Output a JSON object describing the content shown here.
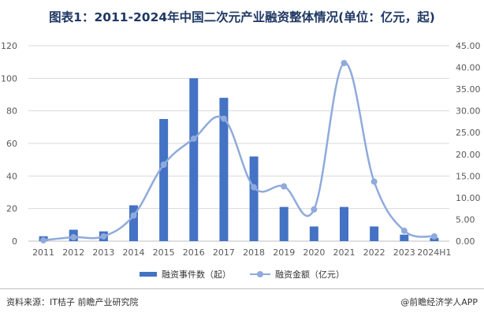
{
  "page": {
    "title": "图表1：2011-2024年中国二次元产业融资整体情况(单位：亿元，起)",
    "source": "资料来源：IT桔子 前瞻产业研究院",
    "brand": "@前瞻经济学人APP"
  },
  "legend": {
    "bar_label": "融资事件数（起）",
    "line_label": "融资金额（亿元）"
  },
  "chart_data": {
    "type": "bar",
    "title": "图表1：2011-2024年中国二次元产业融资整体情况(单位：亿元，起)",
    "categories": [
      "2011",
      "2012",
      "2013",
      "2014",
      "2015",
      "2016",
      "2017",
      "2018",
      "2019",
      "2020",
      "2021",
      "2022",
      "2023",
      "2024H1"
    ],
    "left_axis": {
      "ylim": [
        0,
        120
      ],
      "ticks": [
        "0",
        "20",
        "40",
        "60",
        "80",
        "100",
        "120"
      ]
    },
    "right_axis": {
      "ylim": [
        0,
        45
      ],
      "ticks": [
        "0.00",
        "5.00",
        "10.00",
        "15.00",
        "20.00",
        "25.00",
        "30.00",
        "35.00",
        "40.00",
        "45.00"
      ]
    },
    "series": [
      {
        "name": "融资事件数（起）",
        "type": "bar",
        "axis": "left",
        "color": "#4472c4",
        "values": [
          3,
          7,
          6,
          22,
          75,
          100,
          88,
          52,
          21,
          9,
          21,
          9,
          4,
          2
        ]
      },
      {
        "name": "融资金额（亿元）",
        "type": "line",
        "axis": "right",
        "color": "#8faadc",
        "values": [
          0.2,
          0.9,
          1.1,
          5.9,
          17.6,
          23.6,
          28.2,
          12.4,
          12.6,
          7.3,
          41.0,
          13.7,
          2.4,
          1.1
        ]
      }
    ],
    "grid": "horizontal"
  }
}
